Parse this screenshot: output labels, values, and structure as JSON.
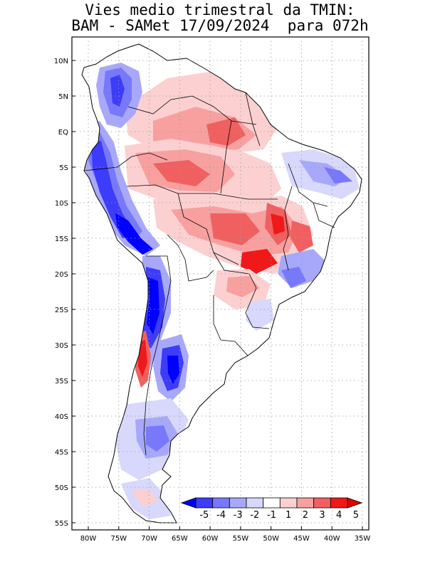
{
  "title": {
    "line1": "Vies medio trimestral da TMIN:",
    "line2": "BAM - SAMet 17/09/2024  para 072h"
  },
  "map": {
    "lon_range": [
      -83,
      -34
    ],
    "lat_range": [
      -56,
      13
    ],
    "lat_ticks": [
      {
        "value": 10,
        "label": "10N"
      },
      {
        "value": 5,
        "label": "5N"
      },
      {
        "value": 0,
        "label": "EQ"
      },
      {
        "value": -5,
        "label": "5S"
      },
      {
        "value": -10,
        "label": "10S"
      },
      {
        "value": -15,
        "label": "15S"
      },
      {
        "value": -20,
        "label": "20S"
      },
      {
        "value": -25,
        "label": "25S"
      },
      {
        "value": -30,
        "label": "30S"
      },
      {
        "value": -35,
        "label": "35S"
      },
      {
        "value": -40,
        "label": "40S"
      },
      {
        "value": -45,
        "label": "45S"
      },
      {
        "value": -50,
        "label": "50S"
      },
      {
        "value": -55,
        "label": "55S"
      }
    ],
    "lon_ticks": [
      {
        "value": -80,
        "label": "80W"
      },
      {
        "value": -75,
        "label": "75W"
      },
      {
        "value": -70,
        "label": "70W"
      },
      {
        "value": -65,
        "label": "65W"
      },
      {
        "value": -60,
        "label": "60W"
      },
      {
        "value": -55,
        "label": "55W"
      },
      {
        "value": -50,
        "label": "50W"
      },
      {
        "value": -45,
        "label": "45W"
      },
      {
        "value": -40,
        "label": "40W"
      },
      {
        "value": -35,
        "label": "35W"
      }
    ],
    "colors": {
      "land_neutral": "#ffffff",
      "grid": "#9a9a9a",
      "border": "#000000"
    }
  },
  "colorbar": {
    "labels": [
      "-5",
      "-4",
      "-3",
      "-2",
      "-1",
      "1",
      "2",
      "3",
      "4",
      "5"
    ],
    "colors": [
      "#0000ff",
      "#3c3cfa",
      "#7878fa",
      "#a8a8fa",
      "#d8d8fc",
      "#ffffff",
      "#fcd0d0",
      "#f8a0a0",
      "#f06060",
      "#f01818",
      "#e00000"
    ]
  }
}
